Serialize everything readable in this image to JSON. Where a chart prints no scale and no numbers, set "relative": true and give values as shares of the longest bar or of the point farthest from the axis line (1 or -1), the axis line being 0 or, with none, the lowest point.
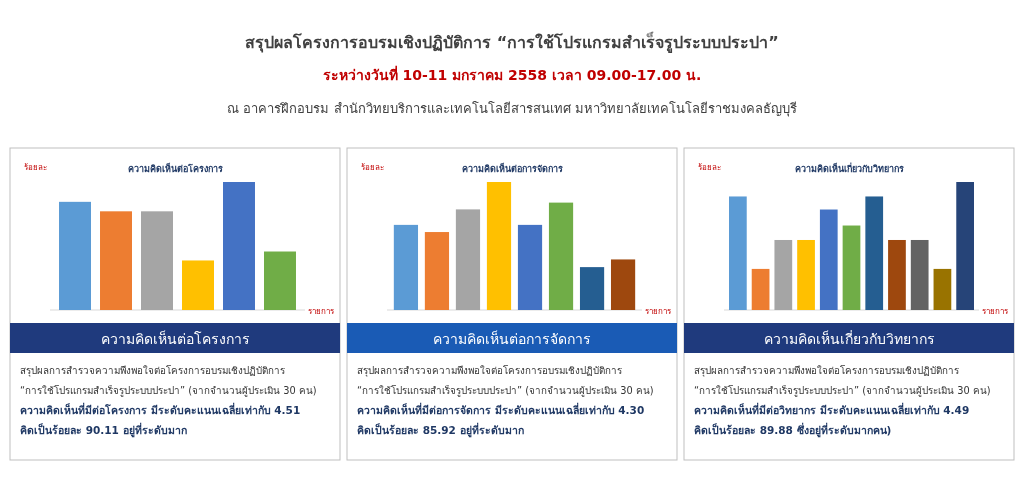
{
  "chart_data": [
    {
      "type": "other",
      "title": "สรุปผลโครงการอบรมเชิงปฏิบัติการ “การใช้โปรแกรมสำเร็จรูประบบประปา”",
      "subtitle": "ระหว่างวันที่ 10-11 มกราคม 2558  เวลา  09.00-17.00 น.",
      "annotations": [
        "ณ อาคารฝึกอบรม สำนักวิทยบริการและเทคโนโลยีสารสนเทศ  มหาวิทยาลัยเทคโนโลยีราชมงคลธัญบุรี"
      ]
    },
    {
      "type": "bar",
      "title": "ความคิดเห็นต่อโครงการ",
      "ylabel": "ร้อยละ",
      "xlabel": "รายการ",
      "relative": true,
      "categories": [
        null,
        null,
        null,
        null,
        null,
        null
      ],
      "values": [
        0.845,
        0.771,
        0.771,
        0.387,
        1,
        0.457
      ],
      "colors": [
        "#5b9bd5",
        "#ed7d31",
        "#a5a5a5",
        "#ffc000",
        "#4472c4",
        "#70ad47"
      ],
      "annotations": [
        "ความคิดเห็นต่อโครงการ",
        "สรุปผลการสำรวจความพึงพอใจต่อโครงการอบรมเชิงปฏิบัติการ",
        "“การใช้โปรแกรมสำเร็จรูประบบประปา” (จากจำนวนผู้ประเมิน 30 คน)",
        "ความคิดเห็นที่มีต่อโครงการ  มีระดับคะแนนเฉลี่ยเท่ากับ  4.51",
        "คิดเป็นร้อยละ 90.11  อยู่ที่ระดับมาก"
      ]
    },
    {
      "type": "bar",
      "title": "ความคิดเห็นต่อการจัดการ",
      "ylabel": "ร้อยละ",
      "xlabel": "รายการ",
      "relative": true,
      "categories": [
        null,
        null,
        null,
        null,
        null,
        null,
        null,
        null
      ],
      "values": [
        0.665,
        0.609,
        0.786,
        1,
        0.665,
        0.839,
        0.335,
        0.395
      ],
      "colors": [
        "#5b9bd5",
        "#ed7d31",
        "#a5a5a5",
        "#ffc000",
        "#4472c4",
        "#70ad47",
        "#255e91",
        "#9e480e"
      ],
      "annotations": [
        "ความคิดเห็นต่อการจัดการ",
        "สรุปผลการสำรวจความพึงพอใจต่อโครงการอบรมเชิงปฏิบัติการ",
        "“การใช้โปรแกรมสำเร็จรูประบบประปา” (จากจำนวนผู้ประเมิน 30 คน)",
        "ความคิดเห็นที่มีต่อการจัดการ มีระดับคะแนนเฉลี่ยเท่ากับ 4.30",
        "คิดเป็นร้อยละ 85.92 อยู่ที่ระดับมาก"
      ]
    },
    {
      "type": "bar",
      "title": "ความคิดเห็นเกี่ยวกับวิทยากร",
      "ylabel": "ร้อยละ",
      "xlabel": "รายการ",
      "relative": true,
      "categories": [
        null,
        null,
        null,
        null,
        null,
        null,
        null,
        null,
        null,
        null,
        null
      ],
      "values": [
        0.887,
        0.321,
        0.547,
        0.547,
        0.785,
        0.66,
        0.887,
        0.547,
        0.547,
        0.321,
        1
      ],
      "colors": [
        "#5b9bd5",
        "#ed7d31",
        "#a5a5a5",
        "#ffc000",
        "#4472c4",
        "#70ad47",
        "#255e91",
        "#9e480e",
        "#636363",
        "#997300",
        "#264478"
      ],
      "annotations": [
        "ความคิดเห็นเกี่ยวกับวิทยากร",
        "สรุปผลการสำรวจความพึงพอใจต่อโครงการอบรมเชิงปฏิบัติการ",
        "“การใช้โปรแกรมสำเร็จรูประบบประปา” (จากจำนวนผู้ประเมิน 30 คน)",
        "ความคิดเห็นที่มีต่อวิทยากร มีระดับคะแนนเฉลี่ยเท่ากับ 4.49",
        "คิดเป็นร้อยละ 89.88 ซึ่งอยู่ที่ระดับมากคน)"
      ]
    }
  ]
}
